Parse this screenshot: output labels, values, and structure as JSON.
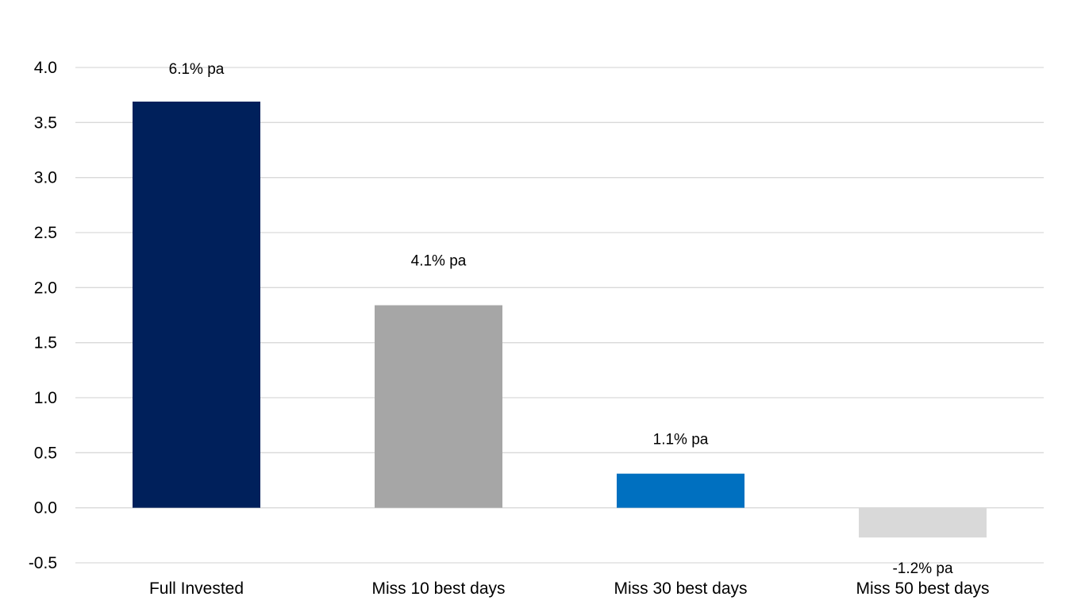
{
  "chart_data": {
    "type": "bar",
    "title": "",
    "xlabel": "",
    "ylabel": "",
    "ylim": [
      -0.5,
      4.0
    ],
    "yticks": [
      "4.0",
      "3.5",
      "3.0",
      "2.5",
      "2.0",
      "1.5",
      "1.0",
      "0.5",
      "0.0",
      "-0.5"
    ],
    "grid": true,
    "legend": "none",
    "categories": [
      "Full Invested",
      "Miss 10 best days",
      "Miss 30 best days",
      "Miss 50 best days"
    ],
    "values": [
      3.69,
      1.84,
      0.31,
      -0.27
    ],
    "data_labels": [
      "6.1% pa",
      "4.1% pa",
      "1.1% pa",
      "-1.2% pa"
    ],
    "colors": [
      "#00205b",
      "#a6a6a6",
      "#0070c0",
      "#d9d9d9"
    ]
  }
}
